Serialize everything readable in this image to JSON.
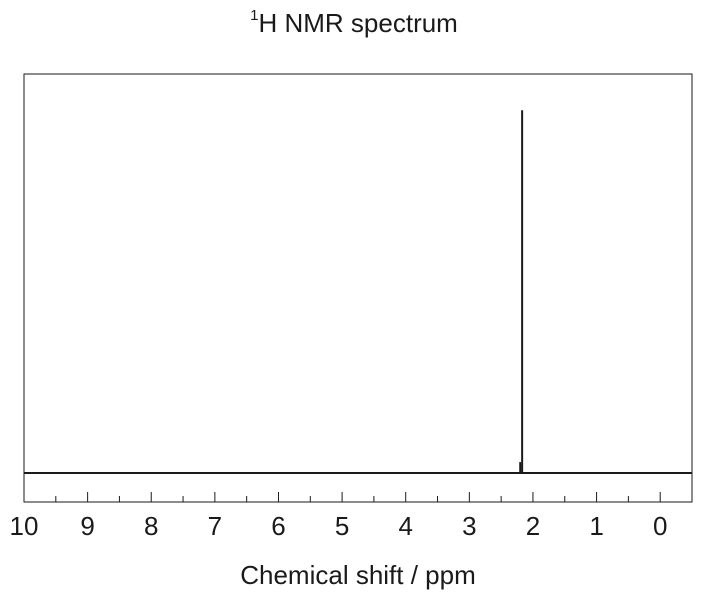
{
  "title": {
    "superscript": "1",
    "text": "H NMR spectrum"
  },
  "chart_data": {
    "type": "line",
    "title": "1H NMR spectrum",
    "xlabel": "Chemical shift / ppm",
    "ylabel": "",
    "x_reversed": true,
    "xlim": [
      10,
      -0.5
    ],
    "ylim": [
      -0.08,
      1.1
    ],
    "x_ticks": [
      10,
      9,
      8,
      7,
      6,
      5,
      4,
      3,
      2,
      1,
      0
    ],
    "x_tick_labels": [
      "10",
      "9",
      "8",
      "7",
      "6",
      "5",
      "4",
      "3",
      "2",
      "1",
      "0"
    ],
    "minor_tick_step": 0.5,
    "grid": false,
    "baseline": 0,
    "peaks": [
      {
        "shift_ppm": 2.17,
        "intensity": 1.0
      },
      {
        "shift_ppm": 2.2,
        "intensity": 0.03
      }
    ]
  },
  "colors": {
    "line": "#1a1a1a",
    "axes": "#1a1a1a",
    "background": "#ffffff"
  }
}
